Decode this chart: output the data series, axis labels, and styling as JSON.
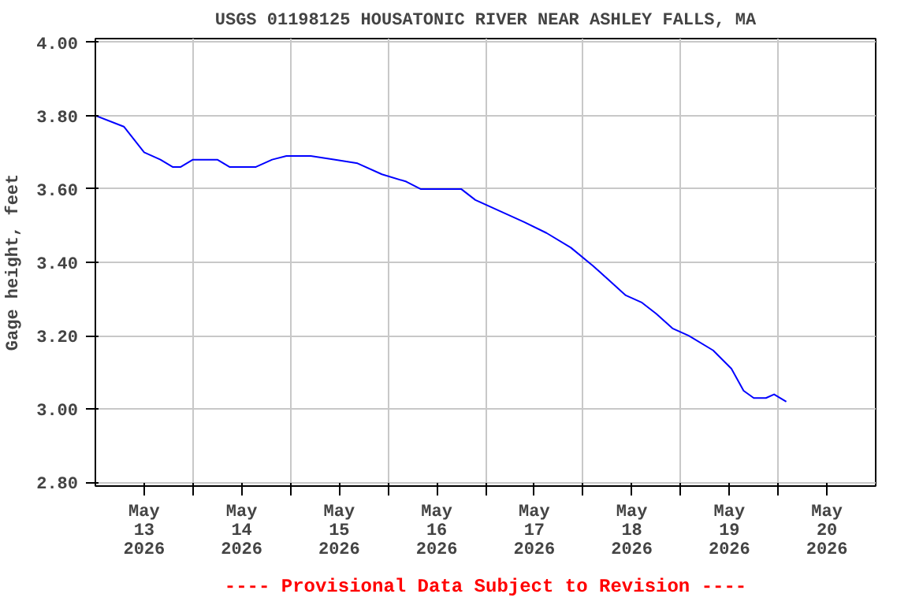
{
  "chart_data": {
    "type": "line",
    "title": "USGS 01198125 HOUSATONIC RIVER NEAR ASHLEY FALLS, MA",
    "ylabel": "Gage height, feet",
    "annotations": [
      "---- Provisional Data Subject to Revision ----"
    ],
    "x": [
      "2026-05-13T00:00",
      "2026-05-13T07:00",
      "2026-05-13T12:00",
      "2026-05-13T16:00",
      "2026-05-13T19:00",
      "2026-05-13T21:00",
      "2026-05-14T00:00",
      "2026-05-14T06:00",
      "2026-05-14T09:00",
      "2026-05-14T15:30",
      "2026-05-14T19:30",
      "2026-05-14T23:00",
      "2026-05-15T05:00",
      "2026-05-15T11:00",
      "2026-05-15T16:30",
      "2026-05-15T22:30",
      "2026-05-16T04:30",
      "2026-05-16T08:00",
      "2026-05-16T18:00",
      "2026-05-16T21:30",
      "2026-05-17T03:30",
      "2026-05-17T09:30",
      "2026-05-17T15:00",
      "2026-05-17T21:00",
      "2026-05-18T02:30",
      "2026-05-18T06:30",
      "2026-05-18T10:30",
      "2026-05-18T14:30",
      "2026-05-18T18:00",
      "2026-05-18T22:00",
      "2026-05-19T02:00",
      "2026-05-19T08:00",
      "2026-05-19T12:30",
      "2026-05-19T15:30",
      "2026-05-19T18:00",
      "2026-05-19T21:00",
      "2026-05-19T23:00",
      "2026-05-20T02:00"
    ],
    "series": [
      {
        "color": "#0000ff",
        "values": [
          3.8,
          3.77,
          3.7,
          3.68,
          3.66,
          3.66,
          3.68,
          3.68,
          3.66,
          3.66,
          3.68,
          3.69,
          3.69,
          3.68,
          3.67,
          3.64,
          3.62,
          3.6,
          3.6,
          3.57,
          3.54,
          3.51,
          3.48,
          3.44,
          3.39,
          3.35,
          3.31,
          3.29,
          3.26,
          3.22,
          3.2,
          3.16,
          3.11,
          3.05,
          3.03,
          3.03,
          3.04,
          3.02
        ]
      }
    ],
    "xlim": [
      "2026-05-13T00:00",
      "2026-05-21T00:00"
    ],
    "xticks": [
      {
        "value": "2026-05-13T12:00",
        "label": "May\n13\n2026"
      },
      {
        "value": "2026-05-14T12:00",
        "label": "May\n14\n2026"
      },
      {
        "value": "2026-05-15T12:00",
        "label": "May\n15\n2026"
      },
      {
        "value": "2026-05-16T12:00",
        "label": "May\n16\n2026"
      },
      {
        "value": "2026-05-17T12:00",
        "label": "May\n17\n2026"
      },
      {
        "value": "2026-05-18T12:00",
        "label": "May\n18\n2026"
      },
      {
        "value": "2026-05-19T12:00",
        "label": "May\n19\n2026"
      },
      {
        "value": "2026-05-20T12:00",
        "label": "May\n20\n2026"
      },
      {
        "value": "2026-05-14T00:00",
        "label": null
      },
      {
        "value": "2026-05-15T00:00",
        "label": null
      },
      {
        "value": "2026-05-16T00:00",
        "label": null
      },
      {
        "value": "2026-05-17T00:00",
        "label": null
      },
      {
        "value": "2026-05-18T00:00",
        "label": null
      },
      {
        "value": "2026-05-19T00:00",
        "label": null
      },
      {
        "value": "2026-05-20T00:00",
        "label": null
      }
    ],
    "ylim": [
      2.79,
      4.01
    ],
    "yticks": [
      {
        "value": 2.8,
        "label": "2.80"
      },
      {
        "value": 3.0,
        "label": "3.00"
      },
      {
        "value": 3.2,
        "label": "3.20"
      },
      {
        "value": 3.4,
        "label": "3.40"
      },
      {
        "value": 3.6,
        "label": "3.60"
      },
      {
        "value": 3.8,
        "label": "3.80"
      },
      {
        "value": 4.0,
        "label": "4.00"
      }
    ],
    "grid": true
  }
}
